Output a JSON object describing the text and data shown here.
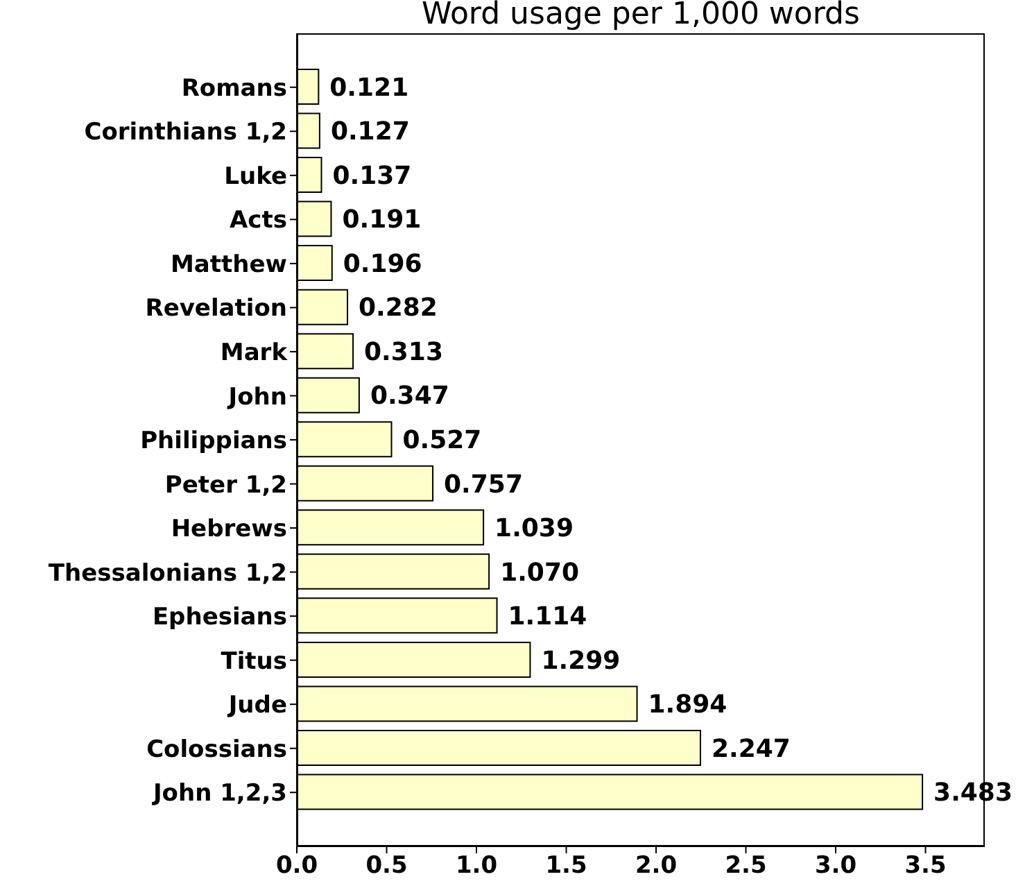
{
  "chart_data": {
    "type": "bar",
    "orientation": "horizontal",
    "title": "Word usage per 1,000 words",
    "categories": [
      "Romans",
      "Corinthians 1,2",
      "Luke",
      "Acts",
      "Matthew",
      "Revelation",
      "Mark",
      "John",
      "Philippians",
      "Peter 1,2",
      "Hebrews",
      "Thessalonians 1,2",
      "Ephesians",
      "Titus",
      "Jude",
      "Colossians",
      "John 1,2,3"
    ],
    "values": [
      0.121,
      0.127,
      0.137,
      0.191,
      0.196,
      0.282,
      0.313,
      0.347,
      0.527,
      0.757,
      1.039,
      1.07,
      1.114,
      1.299,
      1.894,
      2.247,
      3.483
    ],
    "value_labels": [
      "0.121",
      "0.127",
      "0.137",
      "0.191",
      "0.196",
      "0.282",
      "0.313",
      "0.347",
      "0.527",
      "0.757",
      "1.039",
      "1.070",
      "1.114",
      "1.299",
      "1.894",
      "2.247",
      "3.483"
    ],
    "color": "#ffffcc",
    "xlim": [
      0,
      3.83
    ],
    "xticks": [
      {
        "value": 0,
        "label": "0.0"
      },
      0.5,
      {
        "value": 1,
        "label": "1.0"
      },
      1.5,
      {
        "value": 2,
        "label": "2.0"
      },
      2.5,
      {
        "value": 3,
        "label": "3.0"
      },
      3.5
    ]
  }
}
